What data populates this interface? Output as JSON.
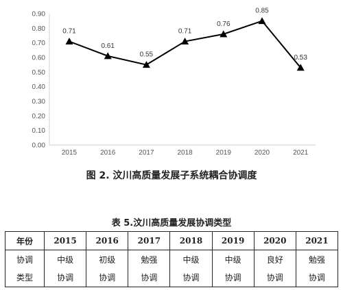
{
  "chart_data": {
    "type": "line",
    "title": "",
    "xlabel": "",
    "ylabel": "",
    "ylim": [
      0,
      0.9
    ],
    "y_ticks": [
      "0.00",
      "0.10",
      "0.20",
      "0.30",
      "0.40",
      "0.50",
      "0.60",
      "0.70",
      "0.80",
      "0.90"
    ],
    "categories": [
      "2015",
      "2016",
      "2017",
      "2018",
      "2019",
      "2020",
      "2021"
    ],
    "series": [
      {
        "values": [
          0.71,
          0.61,
          0.55,
          0.71,
          0.76,
          0.85,
          0.53
        ],
        "labels": [
          "0.71",
          "0.61",
          "0.55",
          "0.71",
          "0.76",
          "0.85",
          "0.53"
        ]
      }
    ],
    "grid": false,
    "legend": "none",
    "line_color": "#000000",
    "marker": "triangle"
  },
  "figure_caption": "图 2.  汶川高质量发展子系统耦合协调度",
  "table": {
    "caption": "表 5.汶川高质量发展协调类型",
    "header_label": "年份",
    "years": [
      "2015",
      "2016",
      "2017",
      "2018",
      "2019",
      "2020",
      "2021"
    ],
    "row_label": [
      "协调",
      "类型"
    ],
    "types": [
      [
        "中级",
        "协调"
      ],
      [
        "初级",
        "协调"
      ],
      [
        "勉强",
        "协调"
      ],
      [
        "中级",
        "协调"
      ],
      [
        "中级",
        "协调"
      ],
      [
        "良好",
        "协调"
      ],
      [
        "勉强",
        "协调"
      ]
    ]
  }
}
